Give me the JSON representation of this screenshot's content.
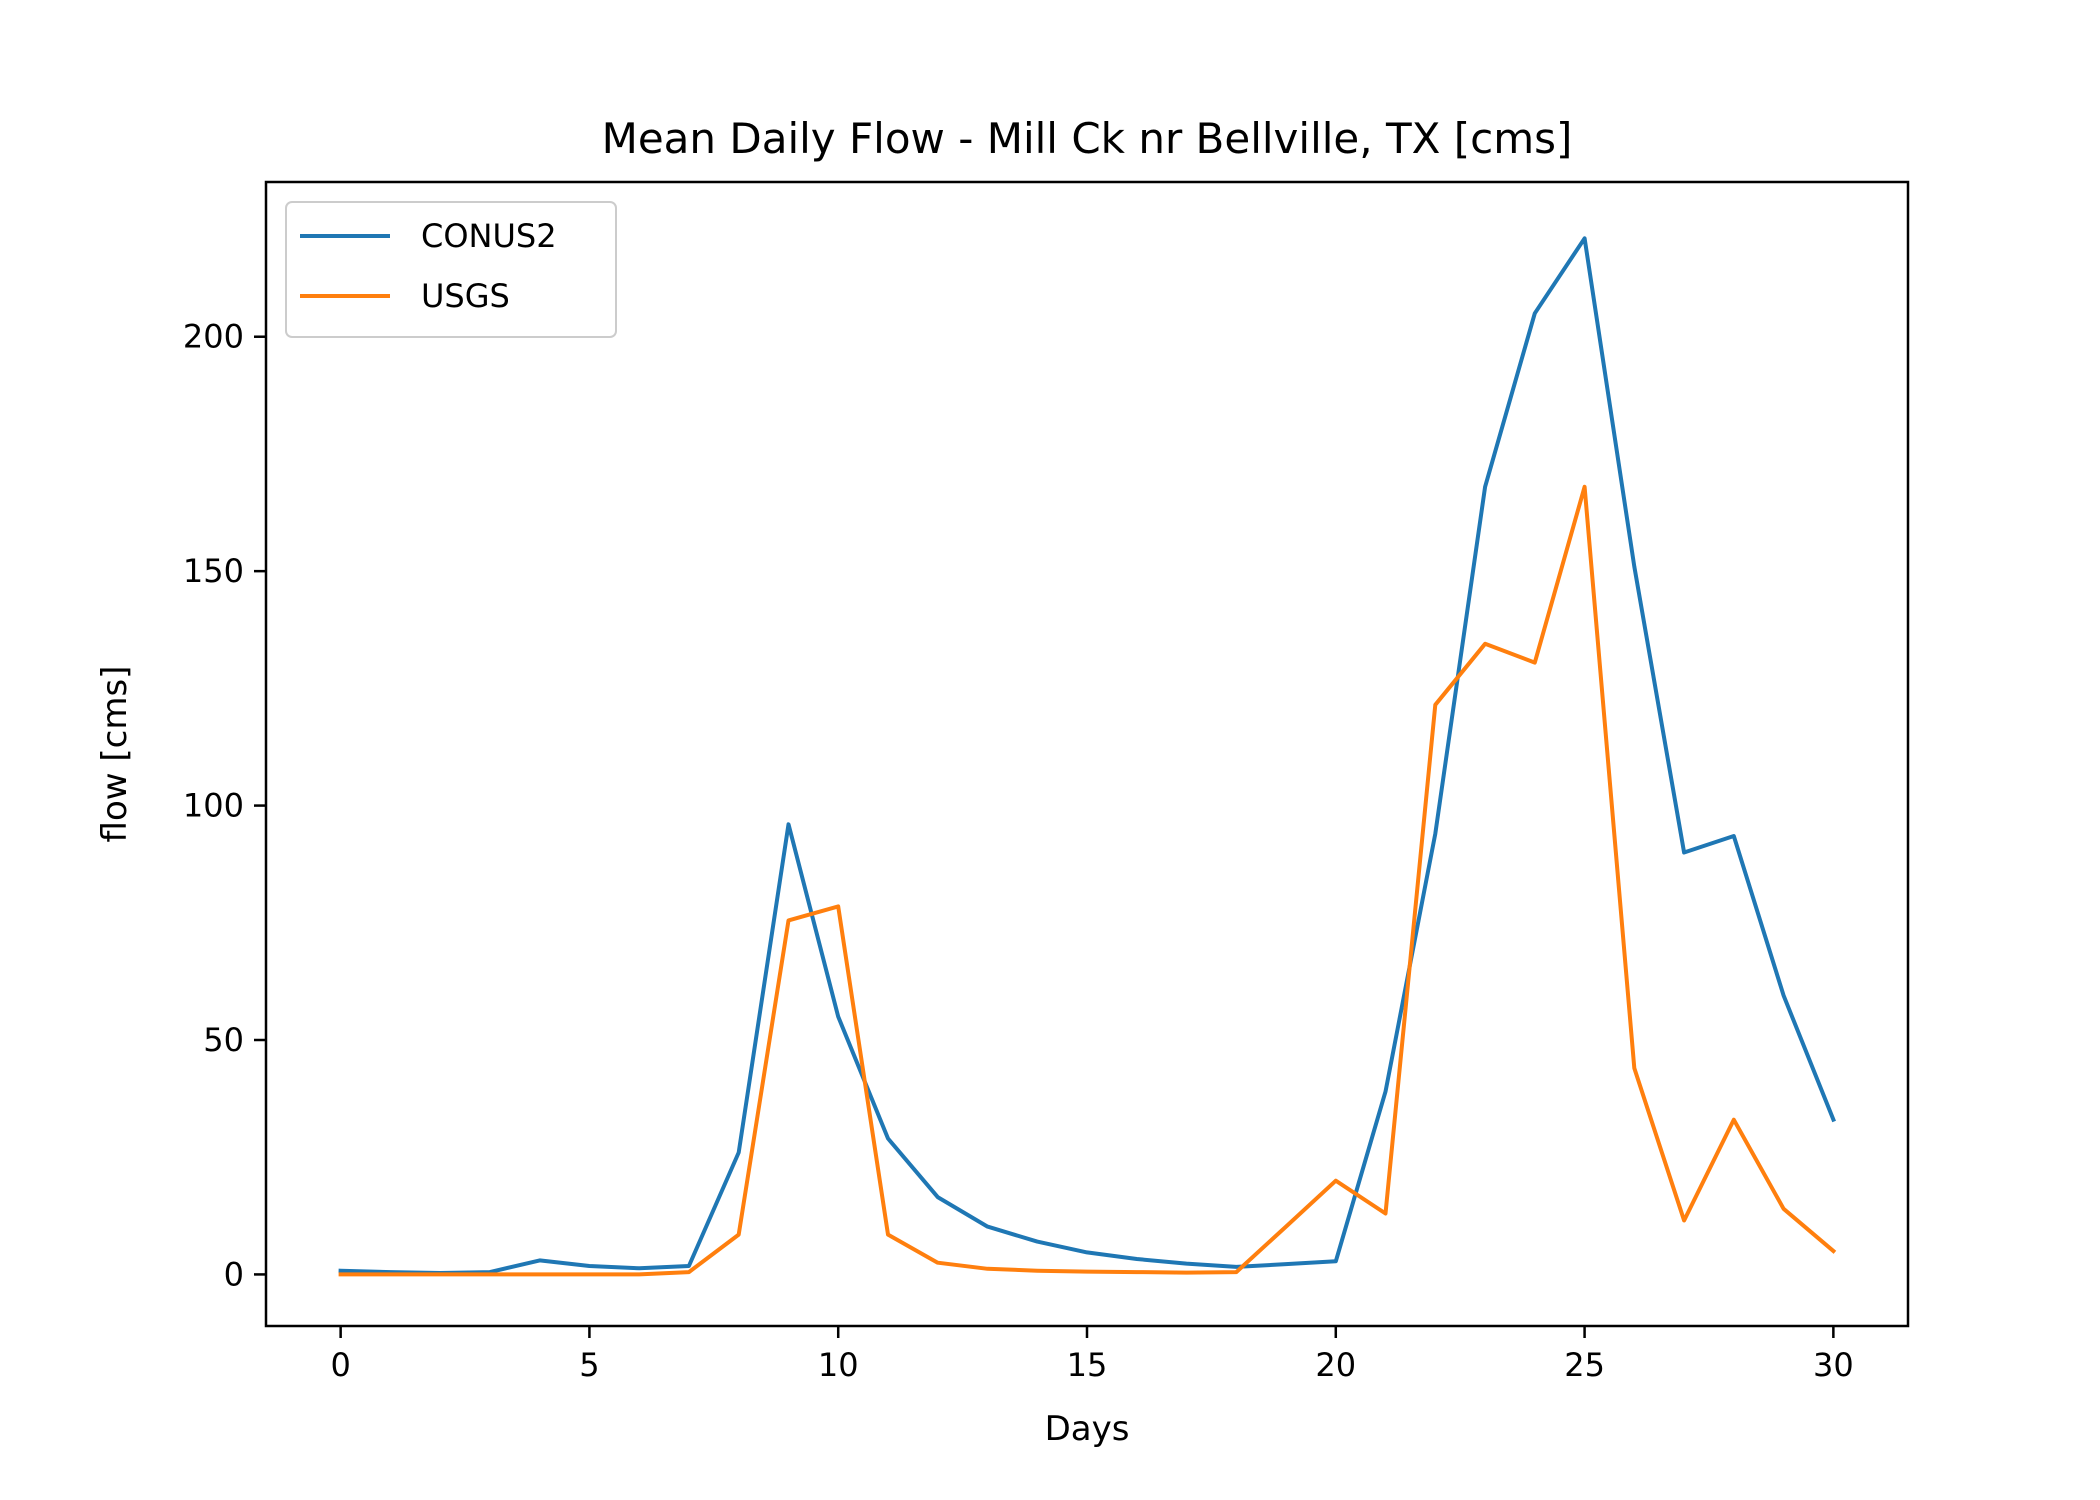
{
  "chart_data": {
    "type": "line",
    "title": "Mean Daily Flow - Mill Ck nr Bellville, TX [cms]",
    "xlabel": "Days",
    "ylabel": "flow [cms]",
    "xlim": [
      -1.5,
      31.5
    ],
    "ylim": [
      -11,
      233
    ],
    "xticks": [
      0,
      5,
      10,
      15,
      20,
      25,
      30
    ],
    "yticks": [
      0,
      50,
      100,
      150,
      200
    ],
    "grid": false,
    "legend_position": "upper-left",
    "series": [
      {
        "name": "CONUS2",
        "color": "#1f77b4",
        "x": [
          0,
          1,
          2,
          3,
          4,
          5,
          6,
          7,
          8,
          9,
          10,
          11,
          12,
          13,
          14,
          15,
          16,
          17,
          18,
          19,
          20,
          21,
          22,
          23,
          24,
          25,
          26,
          27,
          28,
          29,
          30
        ],
        "y": [
          0.8,
          0.5,
          0.3,
          0.5,
          3.0,
          1.8,
          1.3,
          1.8,
          26,
          96,
          55,
          29,
          16.5,
          10.2,
          7,
          4.7,
          3.3,
          2.3,
          1.6,
          2.2,
          2.8,
          39,
          94,
          168,
          205,
          221,
          151,
          90,
          93.5,
          59.5,
          33
        ]
      },
      {
        "name": "USGS",
        "color": "#ff7f0e",
        "x": [
          0,
          1,
          2,
          3,
          4,
          5,
          6,
          7,
          8,
          9,
          10,
          11,
          12,
          13,
          14,
          15,
          16,
          17,
          18,
          19,
          20,
          21,
          22,
          23,
          24,
          25,
          26,
          27,
          28,
          29,
          30
        ],
        "y": [
          0,
          0,
          0,
          0,
          0,
          0,
          0,
          0.5,
          8.5,
          75.5,
          78.5,
          8.5,
          2.5,
          1.2,
          0.8,
          0.6,
          0.5,
          0.4,
          0.5,
          10.2,
          20,
          13,
          121.5,
          134.5,
          130.5,
          168,
          44,
          11.5,
          33,
          14,
          5
        ]
      }
    ]
  }
}
